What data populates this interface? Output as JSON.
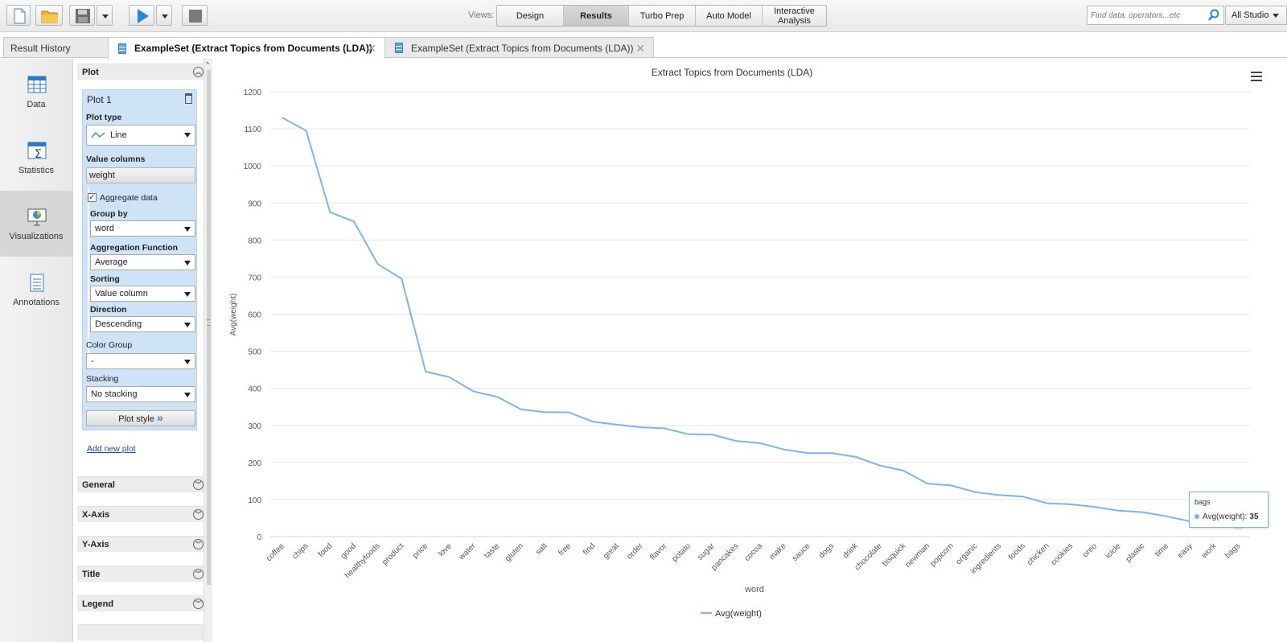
{
  "toolbar": {
    "views_label": "Views:",
    "views": [
      {
        "label": "Design",
        "active": false
      },
      {
        "label": "Results",
        "active": true
      },
      {
        "label": "Turbo Prep",
        "active": false
      },
      {
        "label": "Auto Model",
        "active": false
      },
      {
        "label": "Interactive Analysis",
        "active": false
      }
    ],
    "search_placeholder": "Find data, operators...etc",
    "studio_label": "All Studio",
    "icons": [
      "new-process-icon",
      "open-folder-icon",
      "save-icon",
      "run-icon",
      "stop-icon"
    ]
  },
  "tabs": [
    {
      "label": "Result History",
      "active": false
    },
    {
      "label": "ExampleSet (Extract Topics from Documents (LDA))",
      "active": true,
      "close": "✕"
    },
    {
      "label": "ExampleSet (Extract Topics from Documents (LDA))",
      "active": false,
      "close": "✕"
    }
  ],
  "leftnav": [
    {
      "label": "Data",
      "icon": "table-icon",
      "active": false
    },
    {
      "label": "Statistics",
      "icon": "statistics-icon",
      "active": false
    },
    {
      "label": "Visualizations",
      "icon": "visualizations-icon",
      "active": true
    },
    {
      "label": "Annotations",
      "icon": "annotations-icon",
      "active": false
    }
  ],
  "panel": {
    "plot_section": "Plot",
    "plot_name": "Plot 1",
    "plot_type_label": "Plot type",
    "plot_type_value": "Line",
    "value_columns_label": "Value columns",
    "value_column": "weight",
    "aggregate_label": "Aggregate data",
    "aggregate_checked": true,
    "group_by_label": "Group by",
    "group_by_value": "word",
    "agg_function_label": "Aggregation Function",
    "agg_function_value": "Average",
    "sorting_label": "Sorting",
    "sorting_value": "Value column",
    "direction_label": "Direction",
    "direction_value": "Descending",
    "color_group_label": "Color Group",
    "color_group_value": "-",
    "stacking_label": "Stacking",
    "stacking_value": "No stacking",
    "plot_style_label": "Plot style",
    "add_plot_label": "Add new plot",
    "sections": [
      "General",
      "X-Axis",
      "Y-Axis",
      "Title",
      "Legend"
    ]
  },
  "tooltip": {
    "word": "bags",
    "series": "Avg(weight):",
    "value": "35"
  },
  "colors": {
    "series": "#7cb5ec",
    "accent": "#2a86d6",
    "panel": "#cfe3f7"
  },
  "chart_data": {
    "type": "line",
    "title": "Extract Topics from Documents (LDA)",
    "xlabel": "word",
    "ylabel": "Avg(weight)",
    "ylim": [
      0,
      1200
    ],
    "yticks": [
      0,
      100,
      200,
      300,
      400,
      500,
      600,
      700,
      800,
      900,
      1000,
      1100,
      1200
    ],
    "grid": true,
    "legend": "bottom-center",
    "categories": [
      "coffee",
      "chips",
      "food",
      "good",
      "healthyfoods",
      "product",
      "price",
      "love",
      "water",
      "taste",
      "gluten",
      "salt",
      "free",
      "find",
      "great",
      "order",
      "flavor",
      "potato",
      "sugar",
      "pancakes",
      "cocoa",
      "make",
      "sauce",
      "dogs",
      "drink",
      "chocolate",
      "bisquick",
      "newman",
      "popcorn",
      "organic",
      "ingredients",
      "foods",
      "chicken",
      "cookies",
      "oreo",
      "icicle",
      "plastic",
      "time",
      "easy",
      "work",
      "bags"
    ],
    "series": [
      {
        "name": "Avg(weight)",
        "values": [
          1130,
          1095,
          875,
          850,
          735,
          695,
          445,
          430,
          392,
          377,
          343,
          336,
          335,
          310,
          302,
          295,
          292,
          276,
          275,
          258,
          252,
          235,
          225,
          225,
          215,
          192,
          178,
          143,
          138,
          120,
          112,
          108,
          90,
          87,
          80,
          70,
          66,
          55,
          41,
          36,
          35
        ]
      }
    ]
  }
}
